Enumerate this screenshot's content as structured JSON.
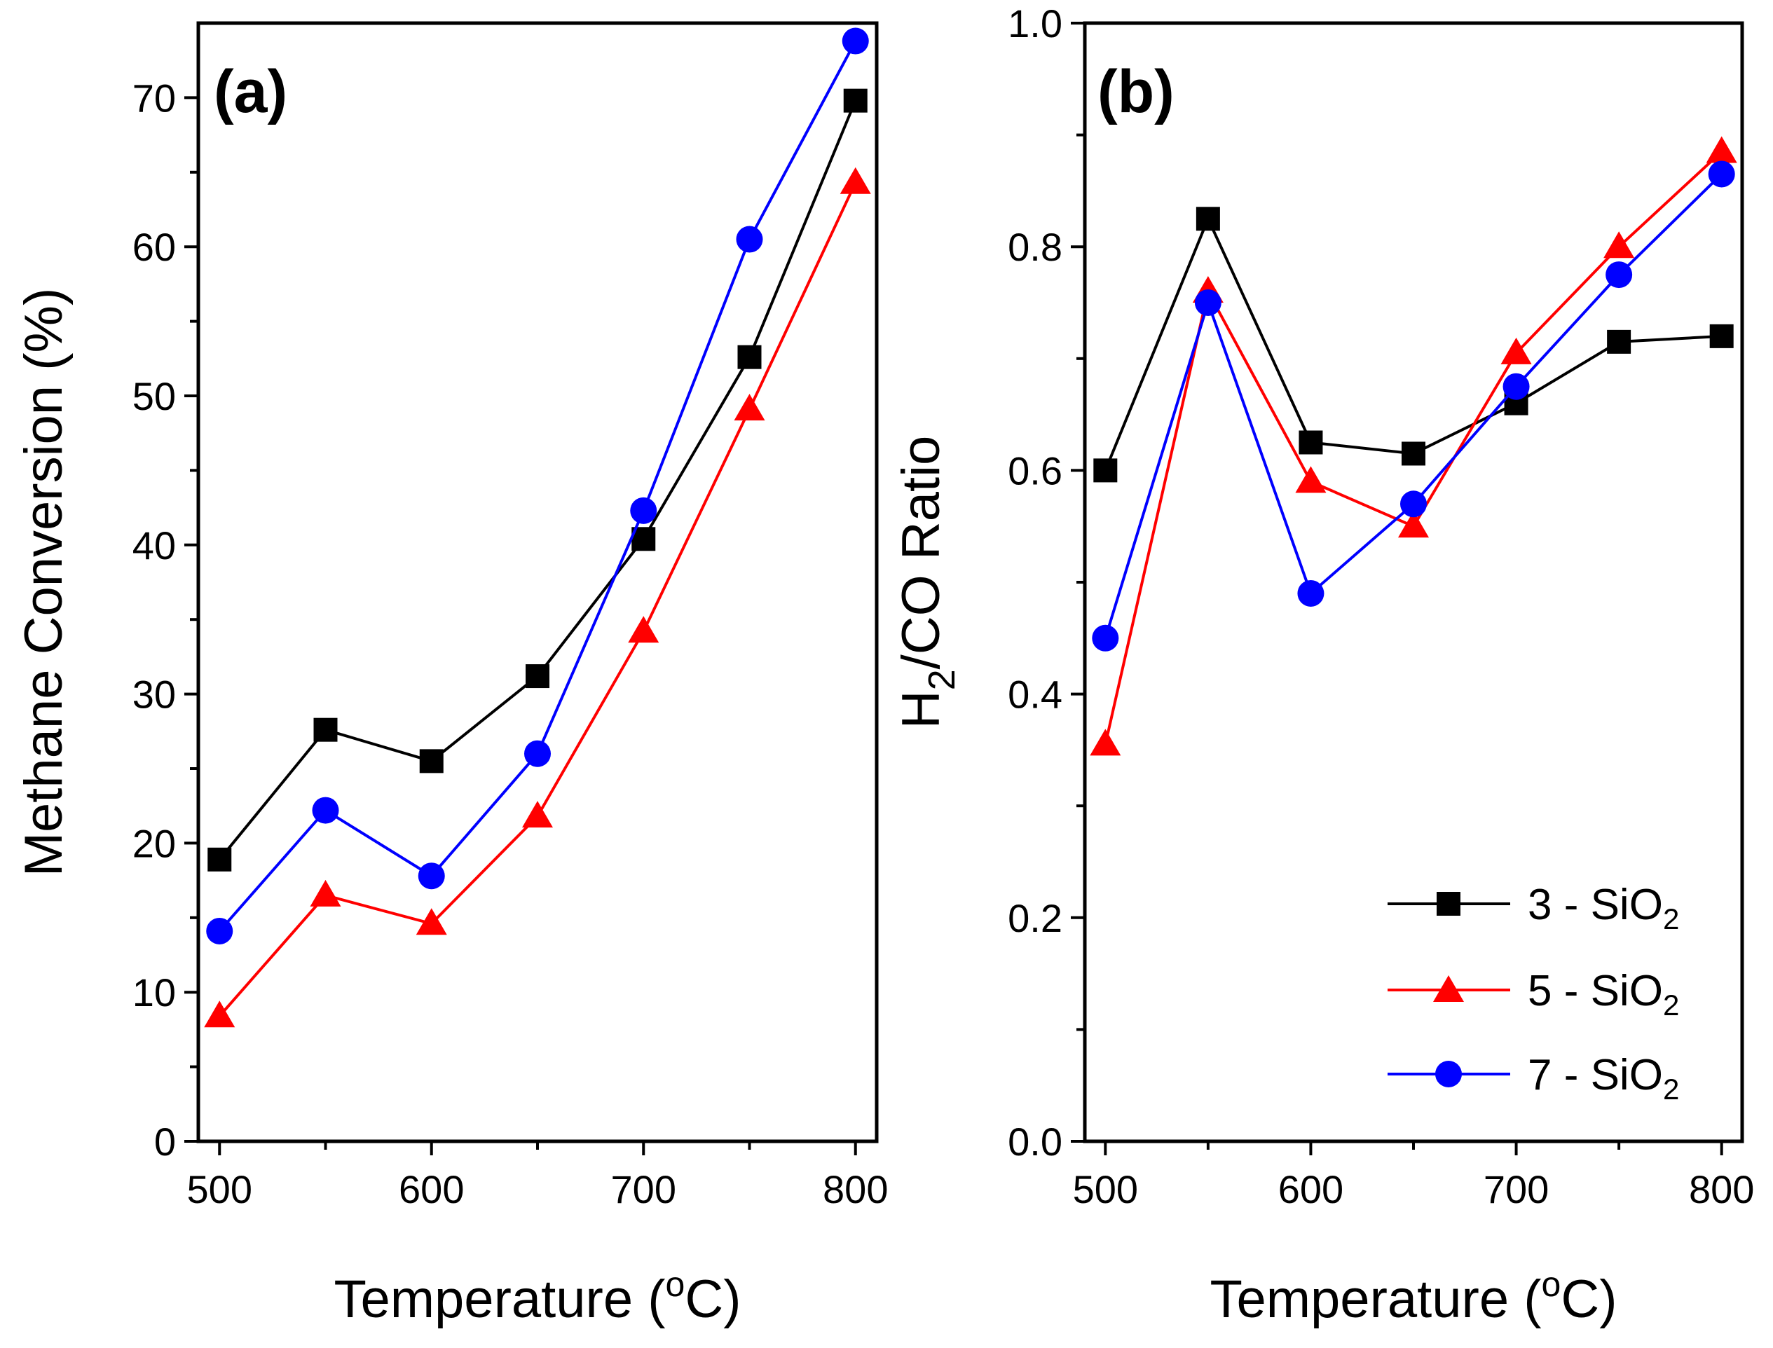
{
  "colors": {
    "series_3": "#000000",
    "series_5": "#ff0000",
    "series_7": "#0000ff"
  },
  "legend": [
    {
      "id": "s3",
      "prefix": "3 - SiO",
      "sub": "2",
      "marker": "square",
      "color": "#000000"
    },
    {
      "id": "s5",
      "prefix": "5 - SiO",
      "sub": "2",
      "marker": "triangle",
      "color": "#ff0000"
    },
    {
      "id": "s7",
      "prefix": "7 - SiO",
      "sub": "2",
      "marker": "circle",
      "color": "#0000ff"
    }
  ],
  "chart_data": [
    {
      "type": "line",
      "panel_label": "(a)",
      "xlabel_text": "Temperature (",
      "xlabel_sup": "o",
      "xlabel_tail": "C)",
      "ylabel": "Methane Conversion (%)",
      "x": [
        500,
        550,
        600,
        650,
        700,
        750,
        800
      ],
      "xlim": [
        490,
        810
      ],
      "ylim": [
        0,
        75
      ],
      "xticks": [
        500,
        600,
        700,
        800
      ],
      "xminor": [
        550,
        650,
        750
      ],
      "yticks": [
        0,
        10,
        20,
        30,
        40,
        50,
        60,
        70
      ],
      "yminor": [
        5,
        15,
        25,
        35,
        45,
        55,
        65
      ],
      "ytick_labels": [
        "0",
        "10",
        "20",
        "30",
        "40",
        "50",
        "60",
        "70"
      ],
      "series": [
        {
          "name": "3 - SiO2",
          "marker": "square",
          "color": "#000000",
          "values": [
            18.9,
            27.6,
            25.5,
            31.2,
            40.4,
            52.6,
            69.8
          ]
        },
        {
          "name": "5 - SiO2",
          "marker": "triangle",
          "color": "#ff0000",
          "values": [
            8.4,
            16.5,
            14.6,
            21.8,
            34.2,
            49.1,
            64.3
          ]
        },
        {
          "name": "7 - SiO2",
          "marker": "circle",
          "color": "#0000ff",
          "values": [
            14.1,
            22.2,
            17.8,
            26.0,
            42.3,
            60.5,
            73.8
          ]
        }
      ]
    },
    {
      "type": "line",
      "panel_label": "(b)",
      "xlabel_text": "Temperature (",
      "xlabel_sup": "o",
      "xlabel_tail": "C)",
      "ylabel_main": "H",
      "ylabel_sub": "2",
      "ylabel_rest": "/CO Ratio",
      "x": [
        500,
        550,
        600,
        650,
        700,
        750,
        800
      ],
      "xlim": [
        490,
        810
      ],
      "ylim": [
        0,
        1.0
      ],
      "xticks": [
        500,
        600,
        700,
        800
      ],
      "xminor": [
        550,
        650,
        750
      ],
      "yticks": [
        0,
        0.2,
        0.4,
        0.6,
        0.8,
        1.0
      ],
      "yminor": [
        0.1,
        0.3,
        0.5,
        0.7,
        0.9
      ],
      "ytick_labels": [
        "0.0",
        "0.2",
        "0.4",
        "0.6",
        "0.8",
        "1.0"
      ],
      "series": [
        {
          "name": "3 - SiO2",
          "marker": "square",
          "color": "#000000",
          "values": [
            0.6,
            0.825,
            0.625,
            0.615,
            0.66,
            0.715,
            0.72
          ]
        },
        {
          "name": "5 - SiO2",
          "marker": "triangle",
          "color": "#ff0000",
          "values": [
            0.355,
            0.76,
            0.59,
            0.55,
            0.705,
            0.8,
            0.885
          ]
        },
        {
          "name": "7 - SiO2",
          "marker": "circle",
          "color": "#0000ff",
          "values": [
            0.45,
            0.75,
            0.49,
            0.57,
            0.675,
            0.775,
            0.865
          ]
        }
      ]
    }
  ]
}
